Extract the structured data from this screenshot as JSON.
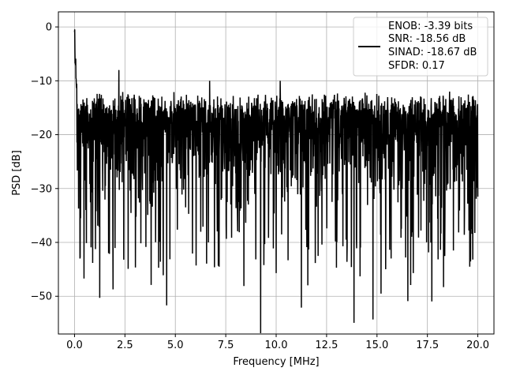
{
  "chart_data": {
    "type": "line",
    "title": "",
    "xlabel": "Frequency [MHz]",
    "ylabel": "PSD [dB]",
    "xlim": [
      -0.8,
      20.8
    ],
    "ylim": [
      -57,
      2.8
    ],
    "xticks": [
      0.0,
      2.5,
      5.0,
      7.5,
      10.0,
      12.5,
      15.0,
      17.5,
      20.0
    ],
    "xtick_labels": [
      "0.0",
      "2.5",
      "5.0",
      "7.5",
      "10.0",
      "12.5",
      "15.0",
      "17.5",
      "20.0"
    ],
    "yticks": [
      0,
      -10,
      -20,
      -30,
      -40,
      -50
    ],
    "ytick_labels": [
      "0",
      "−10",
      "−20",
      "−30",
      "−40",
      "−50"
    ],
    "grid": true,
    "legend_position": "top-right",
    "line_color": "#000000",
    "series": [
      {
        "legend_lines": [
          "ENOB: -3.39 bits",
          "SNR: -18.56 dB",
          "SINAD: -18.67 dB",
          "SFDR: 0.17"
        ],
        "x_range": [
          0,
          20
        ],
        "approx_points": 2000,
        "peak": {
          "x": 0.0,
          "y": 0.0
        },
        "noise_floor_mean": -22,
        "noise_upper_envelope": -10,
        "noise_lower_spikes": -45,
        "notable_minima": [
          {
            "x": 0.3,
            "y": -35.5
          },
          {
            "x": 0.9,
            "y": -43.8
          },
          {
            "x": 1.25,
            "y": -50.3
          },
          {
            "x": 3.8,
            "y": -47.9
          },
          {
            "x": 4.4,
            "y": -46.1
          },
          {
            "x": 8.4,
            "y": -48.1
          },
          {
            "x": 10.0,
            "y": -45.7
          },
          {
            "x": 11.25,
            "y": -52.1
          },
          {
            "x": 14.8,
            "y": -54.3
          },
          {
            "x": 15.2,
            "y": -49.5
          },
          {
            "x": 16.8,
            "y": -45.7
          },
          {
            "x": 18.3,
            "y": -48.3
          }
        ],
        "notable_maxima": [
          {
            "x": 2.2,
            "y": -8.0
          },
          {
            "x": 6.7,
            "y": -10.0
          },
          {
            "x": 10.2,
            "y": -10.0
          },
          {
            "x": 18.6,
            "y": -12.0
          }
        ]
      }
    ]
  }
}
